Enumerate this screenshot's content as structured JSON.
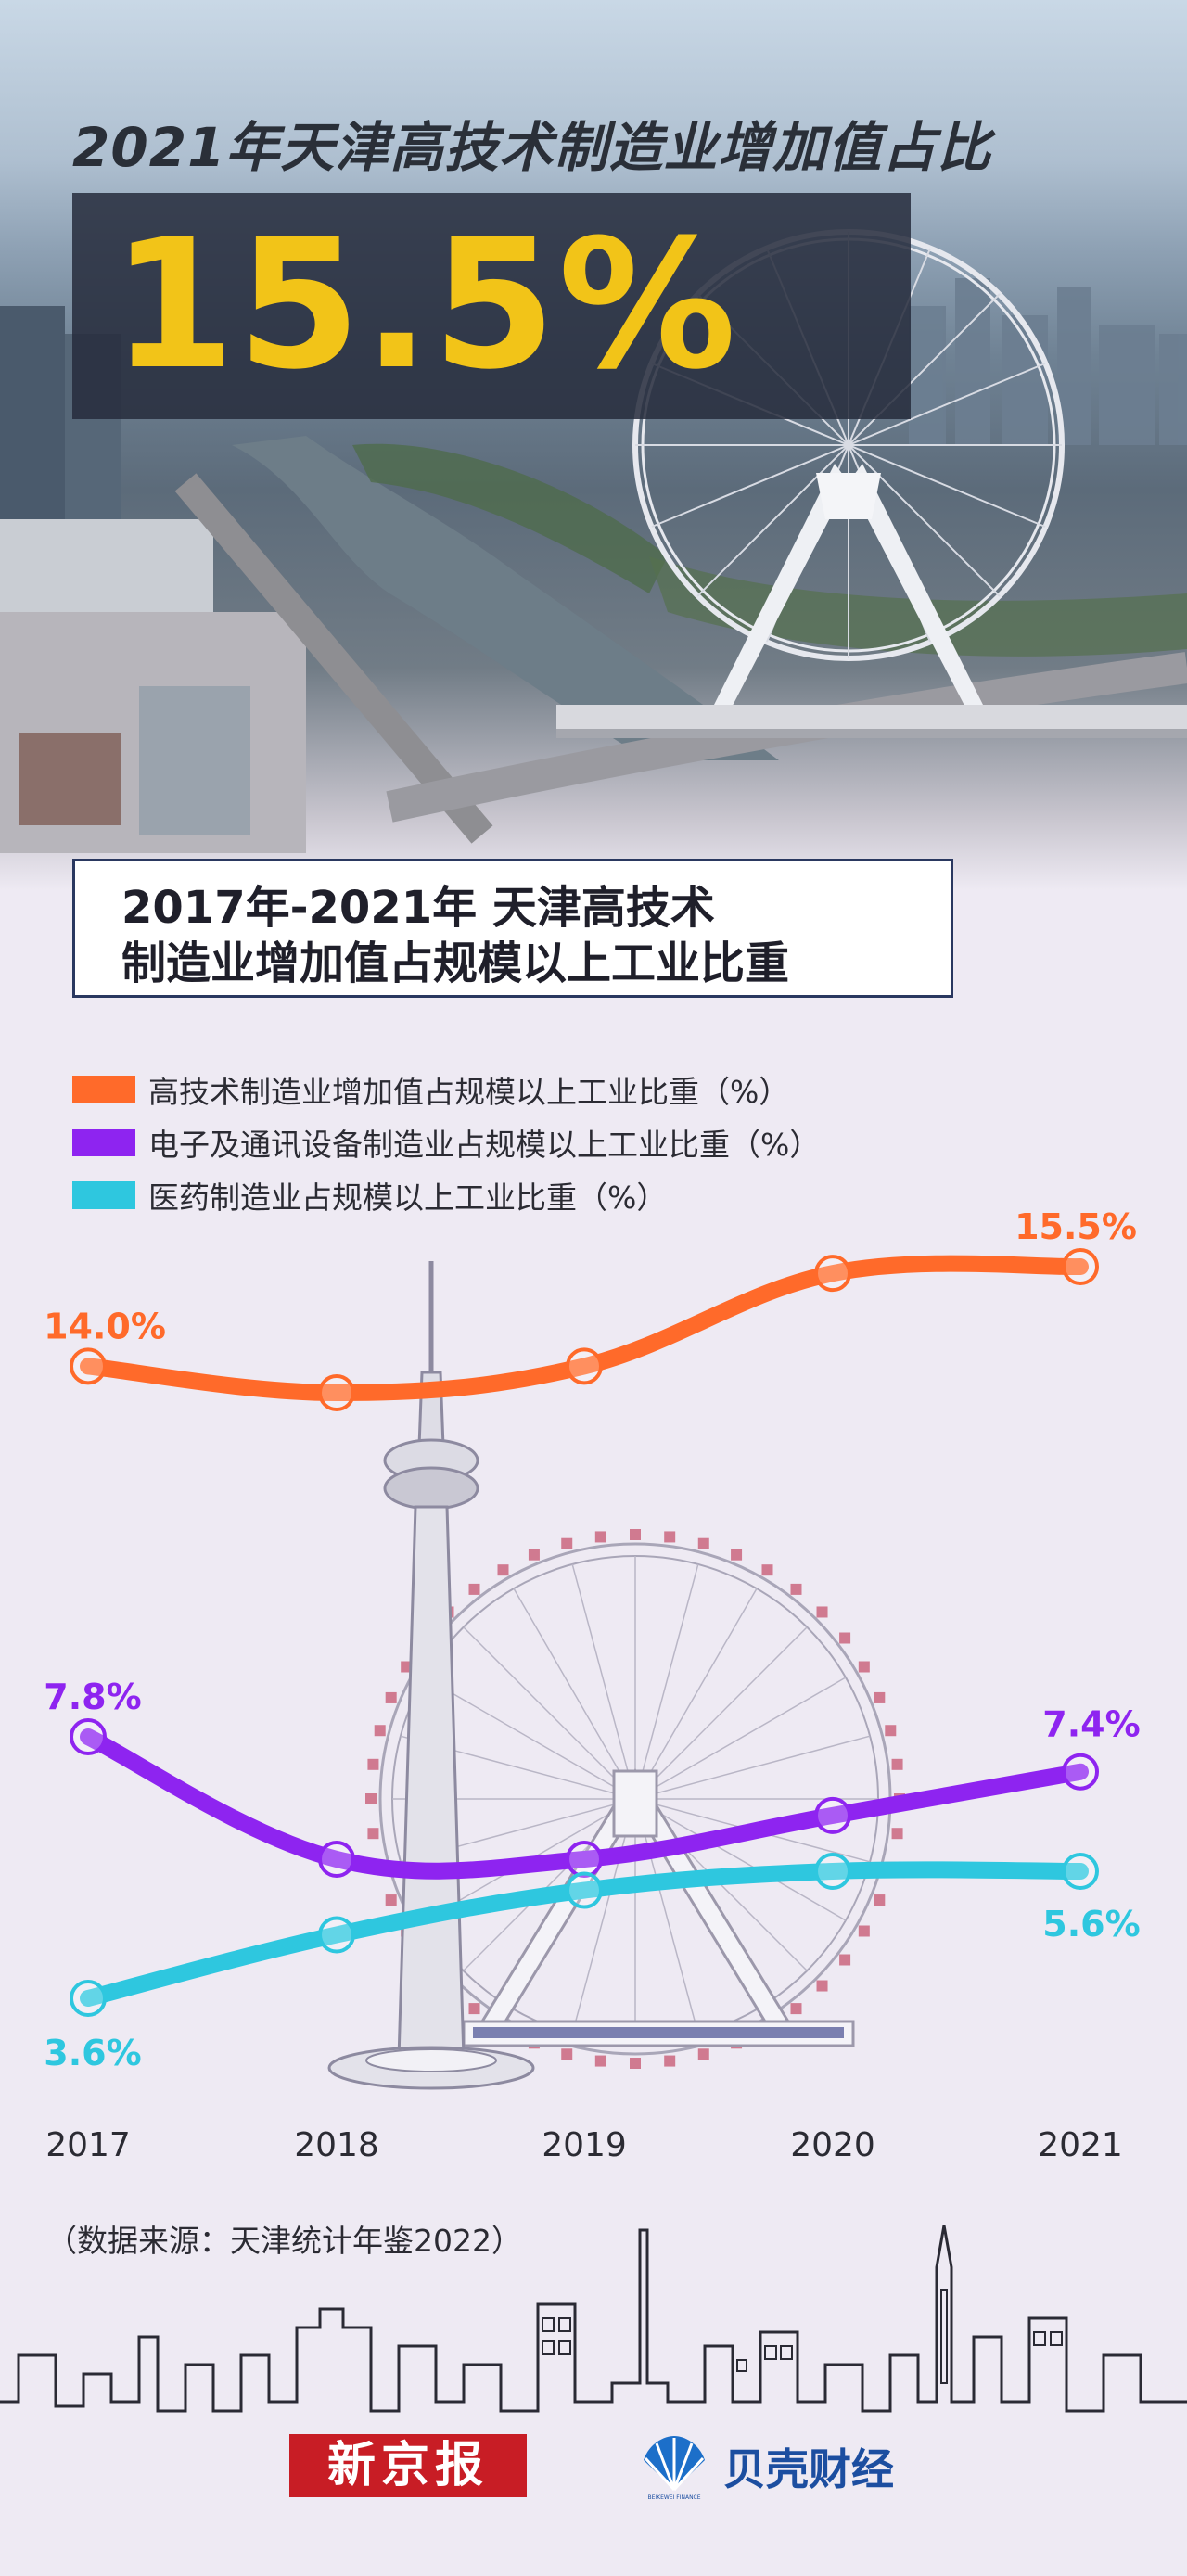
{
  "hero": {
    "title": "2021年天津高技术制造业增加值占比",
    "value": "15.5%"
  },
  "section": {
    "title_line1": "2017年-2021年 天津高技术",
    "title_line2": "制造业增加值占规模以上工业比重"
  },
  "legend": [
    {
      "label": "高技术制造业增加值占规模以上工业比重（%）",
      "color": "#ff6a2a"
    },
    {
      "label": "电子及通讯设备制造业占规模以上工业比重（%）",
      "color": "#8e24f0"
    },
    {
      "label": "医药制造业占规模以上工业比重（%）",
      "color": "#2ec7df"
    }
  ],
  "chart_data": {
    "type": "line",
    "x": [
      "2017",
      "2018",
      "2019",
      "2020",
      "2021"
    ],
    "series": [
      {
        "name": "高技术制造业增加值占规模以上工业比重（%）",
        "color": "#ff6a2a",
        "values": [
          14.0,
          13.6,
          14.0,
          15.4,
          15.5
        ],
        "labels": [
          "14.0%",
          null,
          null,
          null,
          "15.5%"
        ]
      },
      {
        "name": "电子及通讯设备制造业占规模以上工业比重（%）",
        "color": "#8e24f0",
        "values": [
          7.8,
          6.4,
          6.4,
          6.9,
          7.4
        ],
        "labels": [
          "7.8%",
          null,
          null,
          null,
          "7.4%"
        ]
      },
      {
        "name": "医药制造业占规模以上工业比重（%）",
        "color": "#2ec7df",
        "values": [
          3.6,
          4.6,
          5.3,
          5.6,
          5.6
        ],
        "labels": [
          "3.6%",
          null,
          null,
          null,
          "5.6%"
        ]
      }
    ],
    "grid": false,
    "legend_position": "top"
  },
  "footer": {
    "source": "（数据来源：天津统计年鉴2022）",
    "logo_left": "新京报",
    "logo_right": "贝壳财经",
    "logo_right_sub": "BEIKEWEI FINANCE"
  }
}
